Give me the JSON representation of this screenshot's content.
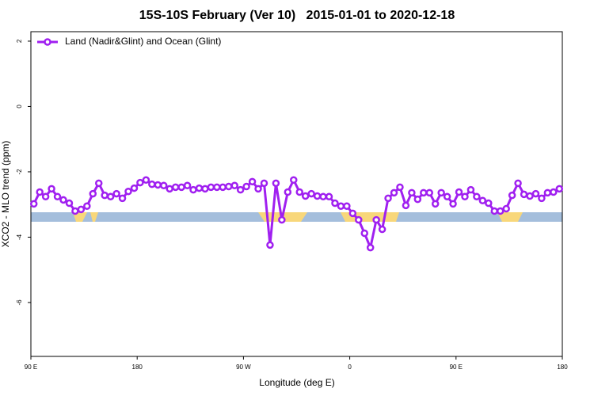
{
  "chart_data": {
    "type": "line",
    "title": "15S-10S February (Ver 10)   2015-01-01 to 2020-12-18",
    "x_label": "Longitude (deg E)",
    "y_label": "XCO2 - MLO trend (ppm)",
    "legend_position": "top-left",
    "xlim": [
      90,
      540
    ],
    "ylim": [
      -7.65,
      2.29
    ],
    "xticks": [
      {
        "value": 90,
        "label": "90 E"
      },
      180,
      {
        "value": 270,
        "label": "90 W"
      },
      {
        "value": 360,
        "label": "0"
      },
      {
        "value": 450,
        "label": "90 E"
      },
      {
        "value": 540,
        "label": "180"
      }
    ],
    "yticks": [
      2,
      0,
      -2,
      -4,
      -6
    ],
    "x": [
      92.5,
      97.5,
      102.5,
      107.5,
      112.5,
      117.5,
      122.5,
      127.5,
      132.5,
      137.5,
      142.5,
      147.5,
      152.5,
      157.5,
      162.5,
      167.5,
      172.5,
      177.5,
      182.5,
      187.5,
      192.5,
      197.5,
      202.5,
      207.5,
      212.5,
      217.5,
      222.5,
      227.5,
      232.5,
      237.5,
      242.5,
      247.5,
      252.5,
      257.5,
      262.5,
      267.5,
      272.5,
      277.5,
      282.5,
      287.5,
      292.5,
      297.5,
      302.5,
      307.5,
      312.5,
      317.5,
      322.5,
      327.5,
      332.5,
      337.5,
      342.5,
      347.5,
      352.5,
      357.5,
      362.5,
      367.5,
      372.5,
      377.5,
      382.5,
      387.5,
      392.5,
      397.5,
      402.5,
      407.5,
      412.5,
      417.5,
      422.5,
      427.5,
      432.5,
      437.5,
      442.5,
      447.5,
      452.5,
      457.5,
      462.5,
      467.5,
      472.5,
      477.5,
      482.5,
      487.5,
      492.5,
      497.5,
      502.5,
      507.5,
      512.5,
      517.5,
      522.5,
      527.5,
      532.5,
      537.5
    ],
    "series": [
      {
        "name": "Land (Nadir&Glint) and Ocean (Glint)",
        "color": "#a020f0",
        "values": [
          -2.98,
          -2.62,
          -2.76,
          -2.52,
          -2.76,
          -2.86,
          -2.96,
          -3.2,
          -3.15,
          -3.05,
          -2.67,
          -2.35,
          -2.72,
          -2.76,
          -2.67,
          -2.81,
          -2.6,
          -2.5,
          -2.33,
          -2.25,
          -2.38,
          -2.4,
          -2.42,
          -2.52,
          -2.47,
          -2.47,
          -2.42,
          -2.55,
          -2.5,
          -2.52,
          -2.47,
          -2.47,
          -2.47,
          -2.45,
          -2.42,
          -2.55,
          -2.45,
          -2.3,
          -2.52,
          -2.35,
          -4.24,
          -2.35,
          -3.47,
          -2.62,
          -2.25,
          -2.62,
          -2.74,
          -2.67,
          -2.74,
          -2.76,
          -2.76,
          -2.96,
          -3.05,
          -3.05,
          -3.27,
          -3.47,
          -3.88,
          -4.32,
          -3.47,
          -3.76,
          -2.81,
          -2.64,
          -2.47,
          -3.03,
          -2.64,
          -2.84,
          -2.64,
          -2.64,
          -2.98,
          -2.64,
          -2.76,
          -2.98,
          -2.62,
          -2.76,
          -2.55,
          -2.76,
          -2.88,
          -2.96,
          -3.2,
          -3.2,
          -3.13,
          -2.72,
          -2.35,
          -2.69,
          -2.74,
          -2.67,
          -2.81,
          -2.64,
          -2.62,
          -2.52
        ]
      }
    ]
  }
}
